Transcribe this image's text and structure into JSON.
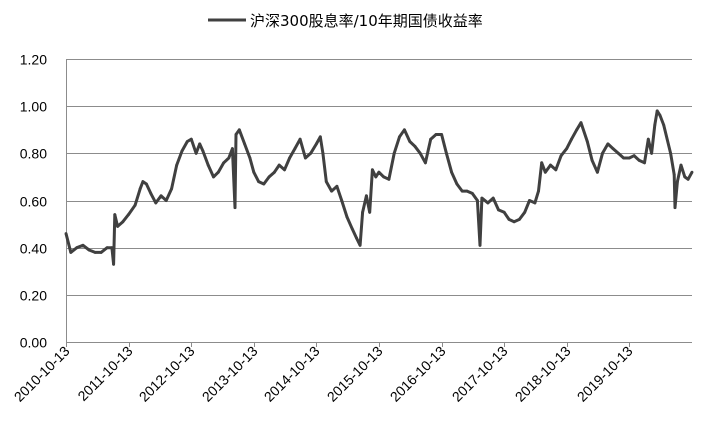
{
  "chart_data": {
    "type": "line",
    "title": "",
    "xlabel": "",
    "ylabel": "",
    "ylim": [
      0,
      1.2
    ],
    "yticks": [
      "0.00",
      "0.20",
      "0.40",
      "0.60",
      "0.80",
      "1.00",
      "1.20"
    ],
    "xtick_labels": [
      "2010-10-13",
      "2011-10-13",
      "2012-10-13",
      "2013-10-13",
      "2014-10-13",
      "2015-10-13",
      "2016-10-13",
      "2017-10-13",
      "2018-10-13",
      "2019-10-13"
    ],
    "x_range": [
      "2010-10-13",
      "2020-10-13"
    ],
    "legend_position": "top-center",
    "grid": "horizontal",
    "series": [
      {
        "name": "沪深300股息率/10年期国债收益率",
        "color": "#404040",
        "points": [
          [
            "2010-10-13",
            0.46
          ],
          [
            "2010-11-10",
            0.38
          ],
          [
            "2010-12-15",
            0.4
          ],
          [
            "2011-01-20",
            0.41
          ],
          [
            "2011-02-25",
            0.39
          ],
          [
            "2011-04-01",
            0.38
          ],
          [
            "2011-05-06",
            0.38
          ],
          [
            "2011-06-10",
            0.4
          ],
          [
            "2011-07-08",
            0.4
          ],
          [
            "2011-07-18",
            0.33
          ],
          [
            "2011-07-25",
            0.54
          ],
          [
            "2011-08-10",
            0.49
          ],
          [
            "2011-09-10",
            0.51
          ],
          [
            "2011-10-13",
            0.54
          ],
          [
            "2011-11-20",
            0.58
          ],
          [
            "2011-12-20",
            0.65
          ],
          [
            "2012-01-05",
            0.68
          ],
          [
            "2012-01-25",
            0.67
          ],
          [
            "2012-02-20",
            0.63
          ],
          [
            "2012-03-20",
            0.59
          ],
          [
            "2012-04-20",
            0.62
          ],
          [
            "2012-05-20",
            0.6
          ],
          [
            "2012-06-20",
            0.65
          ],
          [
            "2012-07-20",
            0.75
          ],
          [
            "2012-08-20",
            0.81
          ],
          [
            "2012-09-20",
            0.85
          ],
          [
            "2012-10-13",
            0.86
          ],
          [
            "2012-11-10",
            0.8
          ],
          [
            "2012-12-01",
            0.84
          ],
          [
            "2012-12-20",
            0.81
          ],
          [
            "2013-01-20",
            0.75
          ],
          [
            "2013-02-20",
            0.7
          ],
          [
            "2013-03-20",
            0.72
          ],
          [
            "2013-04-20",
            0.76
          ],
          [
            "2013-05-20",
            0.78
          ],
          [
            "2013-06-10",
            0.82
          ],
          [
            "2013-06-25",
            0.57
          ],
          [
            "2013-07-01",
            0.88
          ],
          [
            "2013-07-20",
            0.9
          ],
          [
            "2013-08-20",
            0.84
          ],
          [
            "2013-09-20",
            0.78
          ],
          [
            "2013-10-13",
            0.72
          ],
          [
            "2013-11-10",
            0.68
          ],
          [
            "2013-12-10",
            0.67
          ],
          [
            "2014-01-10",
            0.7
          ],
          [
            "2014-02-10",
            0.72
          ],
          [
            "2014-03-10",
            0.75
          ],
          [
            "2014-04-10",
            0.73
          ],
          [
            "2014-05-10",
            0.78
          ],
          [
            "2014-06-10",
            0.82
          ],
          [
            "2014-07-10",
            0.86
          ],
          [
            "2014-08-10",
            0.78
          ],
          [
            "2014-09-10",
            0.8
          ],
          [
            "2014-10-13",
            0.84
          ],
          [
            "2014-11-05",
            0.87
          ],
          [
            "2014-11-20",
            0.8
          ],
          [
            "2014-12-10",
            0.68
          ],
          [
            "2015-01-10",
            0.64
          ],
          [
            "2015-02-10",
            0.66
          ],
          [
            "2015-03-10",
            0.6
          ],
          [
            "2015-04-10",
            0.53
          ],
          [
            "2015-05-10",
            0.48
          ],
          [
            "2015-06-05",
            0.44
          ],
          [
            "2015-06-25",
            0.41
          ],
          [
            "2015-07-10",
            0.55
          ],
          [
            "2015-08-01",
            0.62
          ],
          [
            "2015-08-20",
            0.55
          ],
          [
            "2015-09-05",
            0.73
          ],
          [
            "2015-09-25",
            0.7
          ],
          [
            "2015-10-13",
            0.72
          ],
          [
            "2015-11-10",
            0.7
          ],
          [
            "2015-12-10",
            0.69
          ],
          [
            "2016-01-10",
            0.8
          ],
          [
            "2016-02-10",
            0.87
          ],
          [
            "2016-03-10",
            0.9
          ],
          [
            "2016-04-10",
            0.85
          ],
          [
            "2016-05-10",
            0.83
          ],
          [
            "2016-06-10",
            0.8
          ],
          [
            "2016-07-10",
            0.76
          ],
          [
            "2016-08-10",
            0.86
          ],
          [
            "2016-09-10",
            0.88
          ],
          [
            "2016-10-13",
            0.88
          ],
          [
            "2016-11-10",
            0.8
          ],
          [
            "2016-12-10",
            0.72
          ],
          [
            "2017-01-10",
            0.67
          ],
          [
            "2017-02-10",
            0.64
          ],
          [
            "2017-03-10",
            0.64
          ],
          [
            "2017-04-10",
            0.63
          ],
          [
            "2017-05-10",
            0.6
          ],
          [
            "2017-05-25",
            0.41
          ],
          [
            "2017-06-05",
            0.61
          ],
          [
            "2017-07-10",
            0.59
          ],
          [
            "2017-08-10",
            0.61
          ],
          [
            "2017-09-10",
            0.56
          ],
          [
            "2017-10-13",
            0.55
          ],
          [
            "2017-11-10",
            0.52
          ],
          [
            "2017-12-10",
            0.51
          ],
          [
            "2018-01-10",
            0.52
          ],
          [
            "2018-02-10",
            0.55
          ],
          [
            "2018-03-10",
            0.6
          ],
          [
            "2018-04-10",
            0.59
          ],
          [
            "2018-05-01",
            0.64
          ],
          [
            "2018-05-20",
            0.76
          ],
          [
            "2018-06-10",
            0.72
          ],
          [
            "2018-07-10",
            0.75
          ],
          [
            "2018-08-10",
            0.73
          ],
          [
            "2018-09-10",
            0.79
          ],
          [
            "2018-10-13",
            0.82
          ],
          [
            "2018-11-10",
            0.86
          ],
          [
            "2018-12-10",
            0.9
          ],
          [
            "2019-01-04",
            0.93
          ],
          [
            "2019-02-10",
            0.85
          ],
          [
            "2019-03-10",
            0.77
          ],
          [
            "2019-04-10",
            0.72
          ],
          [
            "2019-05-10",
            0.8
          ],
          [
            "2019-06-10",
            0.84
          ],
          [
            "2019-07-10",
            0.82
          ],
          [
            "2019-08-10",
            0.8
          ],
          [
            "2019-09-10",
            0.78
          ],
          [
            "2019-10-13",
            0.78
          ],
          [
            "2019-11-10",
            0.79
          ],
          [
            "2019-12-10",
            0.77
          ],
          [
            "2020-01-10",
            0.76
          ],
          [
            "2020-02-01",
            0.86
          ],
          [
            "2020-02-20",
            0.8
          ],
          [
            "2020-03-10",
            0.92
          ],
          [
            "2020-03-24",
            0.98
          ],
          [
            "2020-04-10",
            0.96
          ],
          [
            "2020-05-01",
            0.92
          ],
          [
            "2020-06-10",
            0.8
          ],
          [
            "2020-07-01",
            0.71
          ],
          [
            "2020-07-06",
            0.57
          ],
          [
            "2020-07-20",
            0.68
          ],
          [
            "2020-08-10",
            0.75
          ],
          [
            "2020-09-01",
            0.7
          ],
          [
            "2020-09-20",
            0.69
          ],
          [
            "2020-10-13",
            0.72
          ]
        ]
      }
    ]
  }
}
